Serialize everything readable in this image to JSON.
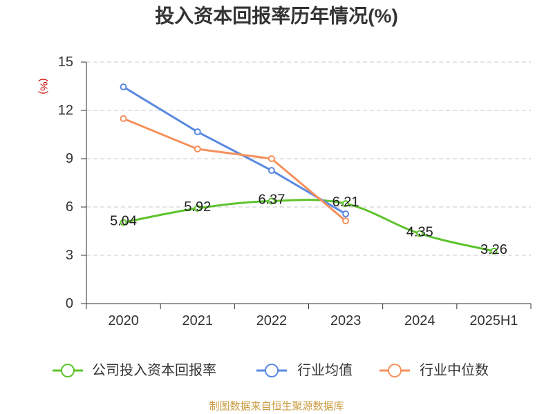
{
  "chart_data": {
    "type": "line",
    "title": "投入资本回报率历年情况(%)",
    "xlabel": "",
    "ylabel": "(%)",
    "ylabel_color": "#cc0000",
    "categories": [
      "2020",
      "2021",
      "2022",
      "2023",
      "2024",
      "2025H1"
    ],
    "ylim": [
      0,
      15
    ],
    "yticks": [
      0,
      3,
      6,
      9,
      12,
      15
    ],
    "grid": true,
    "legend_position": "bottom",
    "series": [
      {
        "name": "公司投入资本回报率",
        "color": "#5cc32c",
        "smooth": true,
        "show_values": true,
        "values": [
          5.04,
          5.92,
          6.37,
          6.21,
          4.35,
          3.26
        ]
      },
      {
        "name": "行业均值",
        "color": "#5a89e0",
        "smooth": false,
        "show_values": false,
        "values": [
          13.46,
          10.67,
          8.27,
          5.57,
          null,
          null
        ]
      },
      {
        "name": "行业中位数",
        "color": "#f5915d",
        "smooth": false,
        "show_values": false,
        "values": [
          11.49,
          9.6,
          9.0,
          5.14,
          null,
          null
        ]
      }
    ]
  },
  "source": {
    "text": "制图数据来自恒生聚源数据库",
    "color": "#c99a3e"
  }
}
